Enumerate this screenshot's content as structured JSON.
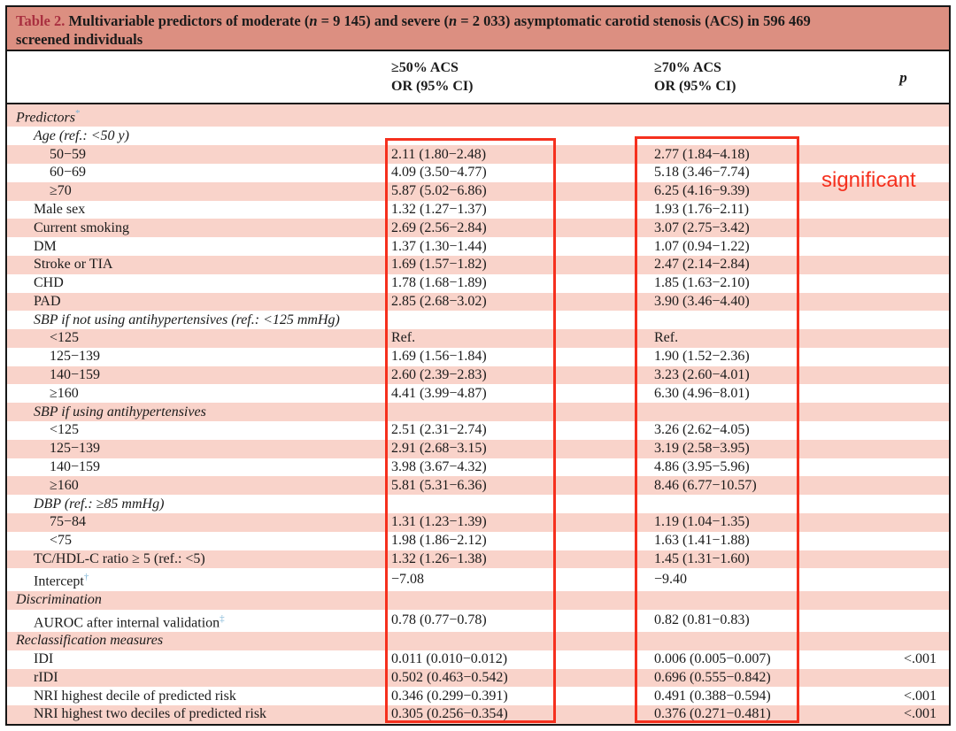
{
  "title": {
    "label": "Table 2.",
    "segments": [
      {
        "text": " Multivariable predictors of moderate (",
        "italic": false
      },
      {
        "text": "n",
        "italic": true
      },
      {
        "text": " = 9 145) and severe (",
        "italic": false
      },
      {
        "text": "n",
        "italic": true
      },
      {
        "text": " = 2 033) asymptomatic carotid stenosis (ACS) in 596 469",
        "italic": false
      },
      {
        "br": true
      },
      {
        "text": "screened individuals",
        "italic": false
      }
    ]
  },
  "columns": {
    "col50": {
      "line1": "≥50% ACS",
      "line2": "OR (95% CI)"
    },
    "col70": {
      "line1": "≥70% ACS",
      "line2": "OR (95% CI)"
    },
    "p": "p"
  },
  "rows": [
    {
      "label": "Predictors",
      "sup": "*",
      "indent": 0,
      "italic": true,
      "or50": "",
      "or70": "",
      "p": ""
    },
    {
      "label": "Age (ref.: <50 y)",
      "indent": 1,
      "italic": true,
      "or50": "",
      "or70": "",
      "p": ""
    },
    {
      "label": "50−59",
      "indent": 2,
      "italic": false,
      "or50": "2.11 (1.80−2.48)",
      "or70": "2.77 (1.84−4.18)",
      "p": ""
    },
    {
      "label": "60−69",
      "indent": 2,
      "italic": false,
      "or50": "4.09 (3.50−4.77)",
      "or70": "5.18 (3.46−7.74)",
      "p": ""
    },
    {
      "label": "≥70",
      "indent": 2,
      "italic": false,
      "or50": "5.87 (5.02−6.86)",
      "or70": "6.25 (4.16−9.39)",
      "p": ""
    },
    {
      "label": "Male sex",
      "indent": 1,
      "italic": false,
      "or50": "1.32 (1.27−1.37)",
      "or70": "1.93 (1.76−2.11)",
      "p": ""
    },
    {
      "label": "Current smoking",
      "indent": 1,
      "italic": false,
      "or50": "2.69 (2.56−2.84)",
      "or70": "3.07 (2.75−3.42)",
      "p": ""
    },
    {
      "label": "DM",
      "indent": 1,
      "italic": false,
      "or50": "1.37 (1.30−1.44)",
      "or70": "1.07 (0.94−1.22)",
      "p": ""
    },
    {
      "label": "Stroke or TIA",
      "indent": 1,
      "italic": false,
      "or50": "1.69 (1.57−1.82)",
      "or70": "2.47 (2.14−2.84)",
      "p": ""
    },
    {
      "label": "CHD",
      "indent": 1,
      "italic": false,
      "or50": "1.78 (1.68−1.89)",
      "or70": "1.85 (1.63−2.10)",
      "p": ""
    },
    {
      "label": "PAD",
      "indent": 1,
      "italic": false,
      "or50": "2.85 (2.68−3.02)",
      "or70": "3.90 (3.46−4.40)",
      "p": ""
    },
    {
      "label": "SBP if not using antihypertensives (ref.: <125 mmHg)",
      "indent": 1,
      "italic": true,
      "or50": "",
      "or70": "",
      "p": ""
    },
    {
      "label": "<125",
      "indent": 2,
      "italic": false,
      "or50": "Ref.",
      "or70": "Ref.",
      "p": ""
    },
    {
      "label": "125−139",
      "indent": 2,
      "italic": false,
      "or50": "1.69 (1.56−1.84)",
      "or70": "1.90 (1.52−2.36)",
      "p": ""
    },
    {
      "label": "140−159",
      "indent": 2,
      "italic": false,
      "or50": "2.60 (2.39−2.83)",
      "or70": "3.23 (2.60−4.01)",
      "p": ""
    },
    {
      "label": "≥160",
      "indent": 2,
      "italic": false,
      "or50": "4.41 (3.99−4.87)",
      "or70": "6.30 (4.96−8.01)",
      "p": ""
    },
    {
      "label": "SBP if using antihypertensives",
      "indent": 1,
      "italic": true,
      "or50": "",
      "or70": "",
      "p": ""
    },
    {
      "label": "<125",
      "indent": 2,
      "italic": false,
      "or50": "2.51 (2.31−2.74)",
      "or70": "3.26 (2.62−4.05)",
      "p": ""
    },
    {
      "label": "125−139",
      "indent": 2,
      "italic": false,
      "or50": "2.91 (2.68−3.15)",
      "or70": "3.19 (2.58−3.95)",
      "p": ""
    },
    {
      "label": "140−159",
      "indent": 2,
      "italic": false,
      "or50": "3.98 (3.67−4.32)",
      "or70": "4.86 (3.95−5.96)",
      "p": ""
    },
    {
      "label": "≥160",
      "indent": 2,
      "italic": false,
      "or50": "5.81 (5.31−6.36)",
      "or70": "8.46 (6.77−10.57)",
      "p": ""
    },
    {
      "label": "DBP (ref.: ≥85 mmHg)",
      "indent": 1,
      "italic": true,
      "or50": "",
      "or70": "",
      "p": ""
    },
    {
      "label": "75−84",
      "indent": 2,
      "italic": false,
      "or50": "1.31 (1.23−1.39)",
      "or70": "1.19 (1.04−1.35)",
      "p": ""
    },
    {
      "label": "<75",
      "indent": 2,
      "italic": false,
      "or50": "1.98 (1.86−2.12)",
      "or70": "1.63 (1.41−1.88)",
      "p": ""
    },
    {
      "label": "TC/HDL-C ratio ≥ 5 (ref.: <5)",
      "indent": 1,
      "italic": false,
      "or50": "1.32 (1.26−1.38)",
      "or70": "1.45 (1.31−1.60)",
      "p": ""
    },
    {
      "label": "Intercept",
      "sup": "†",
      "indent": 1,
      "italic": false,
      "or50": "−7.08",
      "or70": "−9.40",
      "p": ""
    },
    {
      "label": "Discrimination",
      "indent": 0,
      "italic": true,
      "or50": "",
      "or70": "",
      "p": ""
    },
    {
      "label": "AUROC after internal validation",
      "sup": "‡",
      "indent": 1,
      "italic": false,
      "or50": "0.78 (0.77−0.78)",
      "or70": "0.82 (0.81−0.83)",
      "p": ""
    },
    {
      "label": "Reclassification measures",
      "indent": 0,
      "italic": true,
      "or50": "",
      "or70": "",
      "p": ""
    },
    {
      "label": "IDI",
      "indent": 1,
      "italic": false,
      "or50": "0.011 (0.010−0.012)",
      "or70": "0.006 (0.005−0.007)",
      "p": "<.001"
    },
    {
      "label": "rIDI",
      "indent": 1,
      "italic": false,
      "or50": "0.502 (0.463−0.542)",
      "or70": "0.696 (0.555−0.842)",
      "p": ""
    },
    {
      "label": "NRI highest decile of predicted risk",
      "indent": 1,
      "italic": false,
      "or50": "0.346 (0.299−0.391)",
      "or70": "0.491 (0.388−0.594)",
      "p": "<.001"
    },
    {
      "label": "NRI highest two deciles of predicted risk",
      "indent": 1,
      "italic": false,
      "or50": "0.305 (0.256−0.354)",
      "or70": "0.376 (0.271−0.481)",
      "p": "<.001"
    }
  ],
  "annotations": {
    "significant_label": "significant"
  },
  "colors": {
    "header_bg": "#dc8f81",
    "row_pink": "#f9d3ca",
    "table_number_red": "#a93040",
    "annotation_red": "#f5301e",
    "footnote_blue": "#7eb5d6"
  }
}
